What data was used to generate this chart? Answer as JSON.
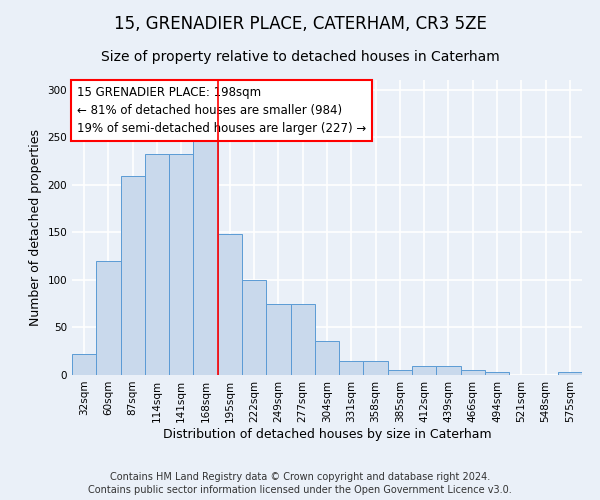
{
  "title1": "15, GRENADIER PLACE, CATERHAM, CR3 5ZE",
  "title2": "Size of property relative to detached houses in Caterham",
  "xlabel": "Distribution of detached houses by size in Caterham",
  "ylabel": "Number of detached properties",
  "bar_labels": [
    "32sqm",
    "60sqm",
    "87sqm",
    "114sqm",
    "141sqm",
    "168sqm",
    "195sqm",
    "222sqm",
    "249sqm",
    "277sqm",
    "304sqm",
    "331sqm",
    "358sqm",
    "385sqm",
    "412sqm",
    "439sqm",
    "466sqm",
    "494sqm",
    "521sqm",
    "548sqm",
    "575sqm"
  ],
  "bar_heights": [
    22,
    120,
    209,
    232,
    232,
    248,
    148,
    100,
    75,
    75,
    36,
    15,
    15,
    5,
    9,
    9,
    5,
    3,
    0,
    0,
    3
  ],
  "bar_color": "#c9d9ec",
  "bar_edge_color": "#5b9bd5",
  "vline_x": 5.5,
  "vline_color": "red",
  "annotation_text": "15 GRENADIER PLACE: 198sqm\n← 81% of detached houses are smaller (984)\n19% of semi-detached houses are larger (227) →",
  "annotation_box_color": "white",
  "annotation_box_edge": "red",
  "ylim": [
    0,
    310
  ],
  "yticks": [
    0,
    50,
    100,
    150,
    200,
    250,
    300
  ],
  "footnote_line1": "Contains HM Land Registry data © Crown copyright and database right 2024.",
  "footnote_line2": "Contains public sector information licensed under the Open Government Licence v3.0.",
  "bg_color": "#eaf0f8",
  "plot_bg_color": "#eaf0f8",
  "grid_color": "white",
  "title1_fontsize": 12,
  "title2_fontsize": 10,
  "xlabel_fontsize": 9,
  "ylabel_fontsize": 9,
  "tick_fontsize": 7.5,
  "annotation_fontsize": 8.5,
  "footnote_fontsize": 7
}
